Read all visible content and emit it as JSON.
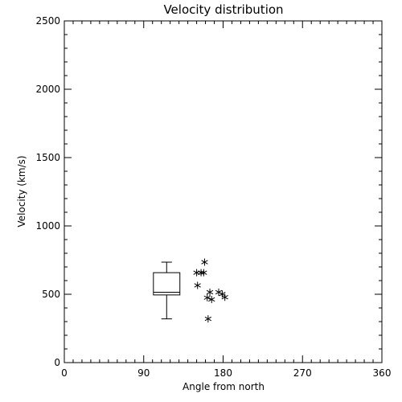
{
  "chart_data": {
    "type": "scatter",
    "title": "Velocity distribution",
    "xlabel": "Angle from north",
    "ylabel": "Velocity (km/s)",
    "xlim": [
      0,
      360
    ],
    "ylim": [
      0,
      2500
    ],
    "x_ticks": [
      "0",
      "90",
      "180",
      "270",
      "360"
    ],
    "y_ticks": [
      "0",
      "500",
      "1000",
      "1500",
      "2000",
      "2500"
    ],
    "grid": false,
    "legend": "none",
    "colors": {
      "axes": "#000000",
      "background": "#ffffff"
    },
    "boxplot": {
      "x_range": [
        101,
        131
      ],
      "whisker_low": 320,
      "q1": 495,
      "median": 515,
      "q3": 658,
      "whisker_high": 735
    },
    "points": [
      {
        "x": 150,
        "y": 658
      },
      {
        "x": 155,
        "y": 658
      },
      {
        "x": 158,
        "y": 658
      },
      {
        "x": 159,
        "y": 735
      },
      {
        "x": 151,
        "y": 565
      },
      {
        "x": 165,
        "y": 515
      },
      {
        "x": 162,
        "y": 475
      },
      {
        "x": 167,
        "y": 462
      },
      {
        "x": 175,
        "y": 515
      },
      {
        "x": 179,
        "y": 502
      },
      {
        "x": 182,
        "y": 478
      },
      {
        "x": 163,
        "y": 320
      }
    ]
  }
}
